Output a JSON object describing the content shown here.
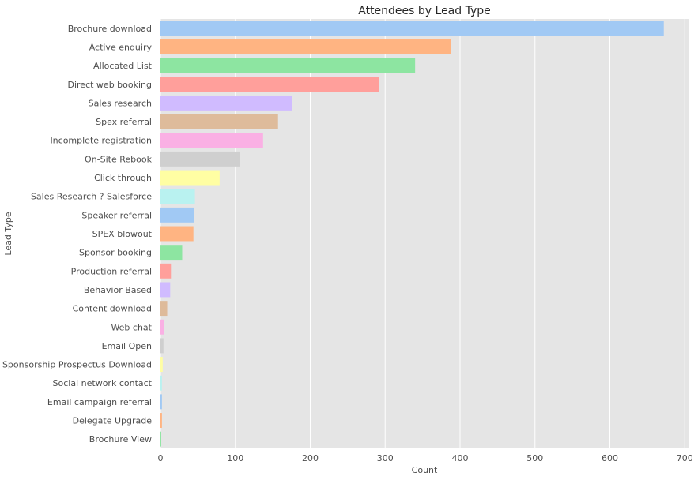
{
  "chart_data": {
    "type": "bar",
    "orientation": "horizontal",
    "title": "Attendees by Lead Type",
    "xlabel": "Count",
    "ylabel": "Lead Type",
    "xlim": [
      0,
      705
    ],
    "xticks": [
      0,
      100,
      200,
      300,
      400,
      500,
      600,
      700
    ],
    "grid": true,
    "categories": [
      "Brochure download",
      "Active enquiry",
      "Allocated List",
      "Direct web booking",
      "Sales research",
      "Spex referral",
      "Incomplete registration",
      "On-Site Rebook",
      "Click through",
      "Sales Research ? Salesforce",
      "Speaker referral",
      "SPEX blowout",
      "Sponsor booking",
      "Production referral",
      "Behavior Based",
      "Content download",
      "Web chat",
      "Email Open",
      "Sponsorship Prospectus Download",
      "Social network contact",
      "Email campaign referral",
      "Delegate Upgrade",
      "Brochure View"
    ],
    "values": [
      672,
      388,
      340,
      292,
      176,
      157,
      137,
      106,
      79,
      46,
      45,
      44,
      29,
      14,
      13,
      9,
      5,
      4,
      3,
      2,
      2,
      2,
      1
    ],
    "colors": [
      "#a1c9f4",
      "#ffb482",
      "#8de5a1",
      "#ff9f9b",
      "#d0bbff",
      "#debb9b",
      "#fab0e4",
      "#cfcfcf",
      "#fffea3",
      "#b9f2f0"
    ]
  }
}
